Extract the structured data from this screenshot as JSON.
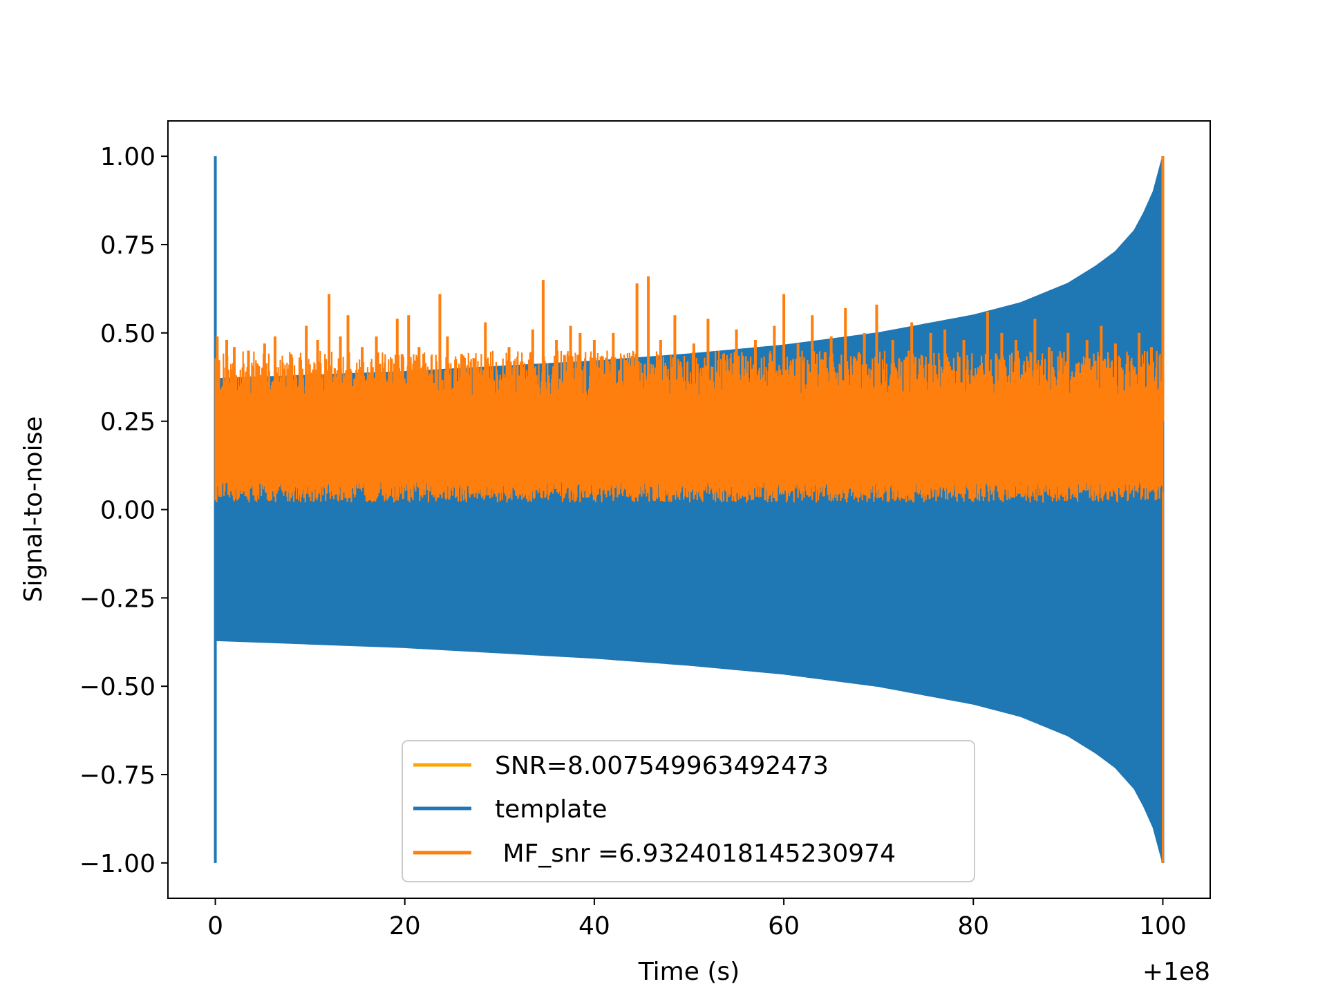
{
  "chart_data": {
    "type": "line",
    "xlabel": "Time (s)",
    "ylabel": "Signal-to-noise",
    "x_offset_label": "+1e8",
    "xlim": [
      -5,
      105
    ],
    "ylim": [
      -1.1,
      1.1
    ],
    "x_ticks": [
      0,
      20,
      40,
      60,
      80,
      100
    ],
    "x_tick_labels": [
      "0",
      "20",
      "40",
      "60",
      "80",
      "100"
    ],
    "y_ticks": [
      1.0,
      0.75,
      0.5,
      0.25,
      0.0,
      -0.25,
      -0.5,
      -0.75,
      -1.0
    ],
    "y_tick_labels": [
      "1.00",
      "0.75",
      "0.50",
      "0.25",
      "0.00",
      "−0.25",
      "−0.50",
      "−0.75",
      "−1.00"
    ],
    "grid": false,
    "legend_position": "bottom-center",
    "series": [
      {
        "name": "SNR=8.007549963492473",
        "color": "#ffa500",
        "style": "legend-only",
        "x": [],
        "y": []
      },
      {
        "name": "template",
        "color": "#1f77b4",
        "style": "envelope",
        "x": [
          0,
          5,
          10,
          20,
          30,
          40,
          50,
          60,
          70,
          80,
          85,
          90,
          93,
          95,
          97,
          98,
          99,
          99.5,
          100
        ],
        "upper": [
          0.37,
          0.375,
          0.38,
          0.39,
          0.405,
          0.42,
          0.44,
          0.465,
          0.5,
          0.55,
          0.585,
          0.64,
          0.69,
          0.73,
          0.79,
          0.84,
          0.9,
          0.95,
          1.0
        ],
        "lower": [
          -0.37,
          -0.375,
          -0.38,
          -0.39,
          -0.405,
          -0.42,
          -0.44,
          -0.465,
          -0.5,
          -0.55,
          -0.585,
          -0.64,
          -0.69,
          -0.73,
          -0.79,
          -0.84,
          -0.9,
          -0.95,
          -1.0
        ],
        "spikes": [
          {
            "x": 0,
            "min": -1.0,
            "max": 1.0
          }
        ]
      },
      {
        "name": " MF_snr =6.9324018145230974",
        "color": "#ff7f0e",
        "style": "noise",
        "band": [
          0.02,
          0.4
        ],
        "x_range": [
          0,
          100
        ],
        "peaks": [
          {
            "x": 0.2,
            "y": 0.49
          },
          {
            "x": 1.2,
            "y": 0.48
          },
          {
            "x": 2.0,
            "y": 0.46
          },
          {
            "x": 3.5,
            "y": 0.45
          },
          {
            "x": 5.2,
            "y": 0.47
          },
          {
            "x": 6.3,
            "y": 0.49
          },
          {
            "x": 8.0,
            "y": 0.44
          },
          {
            "x": 9.6,
            "y": 0.52
          },
          {
            "x": 10.8,
            "y": 0.48
          },
          {
            "x": 12.0,
            "y": 0.61
          },
          {
            "x": 13.2,
            "y": 0.49
          },
          {
            "x": 14.0,
            "y": 0.55
          },
          {
            "x": 15.5,
            "y": 0.46
          },
          {
            "x": 17.0,
            "y": 0.49
          },
          {
            "x": 19.2,
            "y": 0.54
          },
          {
            "x": 20.4,
            "y": 0.55
          },
          {
            "x": 21.5,
            "y": 0.46
          },
          {
            "x": 23.7,
            "y": 0.61
          },
          {
            "x": 24.5,
            "y": 0.49
          },
          {
            "x": 26.0,
            "y": 0.44
          },
          {
            "x": 28.5,
            "y": 0.53
          },
          {
            "x": 31.0,
            "y": 0.46
          },
          {
            "x": 33.5,
            "y": 0.51
          },
          {
            "x": 34.6,
            "y": 0.65
          },
          {
            "x": 36.0,
            "y": 0.48
          },
          {
            "x": 37.5,
            "y": 0.52
          },
          {
            "x": 38.5,
            "y": 0.5
          },
          {
            "x": 40.0,
            "y": 0.48
          },
          {
            "x": 42.0,
            "y": 0.5
          },
          {
            "x": 44.5,
            "y": 0.64
          },
          {
            "x": 45.7,
            "y": 0.66
          },
          {
            "x": 47.0,
            "y": 0.48
          },
          {
            "x": 48.5,
            "y": 0.55
          },
          {
            "x": 50.5,
            "y": 0.47
          },
          {
            "x": 52.0,
            "y": 0.54
          },
          {
            "x": 55.0,
            "y": 0.51
          },
          {
            "x": 57.0,
            "y": 0.48
          },
          {
            "x": 59.0,
            "y": 0.52
          },
          {
            "x": 60.0,
            "y": 0.61
          },
          {
            "x": 61.5,
            "y": 0.47
          },
          {
            "x": 63.0,
            "y": 0.55
          },
          {
            "x": 65.0,
            "y": 0.49
          },
          {
            "x": 66.5,
            "y": 0.57
          },
          {
            "x": 68.5,
            "y": 0.5
          },
          {
            "x": 69.8,
            "y": 0.58
          },
          {
            "x": 71.5,
            "y": 0.48
          },
          {
            "x": 73.5,
            "y": 0.53
          },
          {
            "x": 75.5,
            "y": 0.5
          },
          {
            "x": 77.0,
            "y": 0.51
          },
          {
            "x": 79.0,
            "y": 0.48
          },
          {
            "x": 81.5,
            "y": 0.56
          },
          {
            "x": 83.0,
            "y": 0.5
          },
          {
            "x": 84.5,
            "y": 0.48
          },
          {
            "x": 86.5,
            "y": 0.54
          },
          {
            "x": 88.0,
            "y": 0.46
          },
          {
            "x": 90.0,
            "y": 0.5
          },
          {
            "x": 92.0,
            "y": 0.48
          },
          {
            "x": 93.5,
            "y": 0.52
          },
          {
            "x": 95.0,
            "y": 0.47
          },
          {
            "x": 97.5,
            "y": 0.5
          },
          {
            "x": 98.8,
            "y": 0.46
          },
          {
            "x": 100.0,
            "y": 1.0
          }
        ]
      }
    ]
  }
}
